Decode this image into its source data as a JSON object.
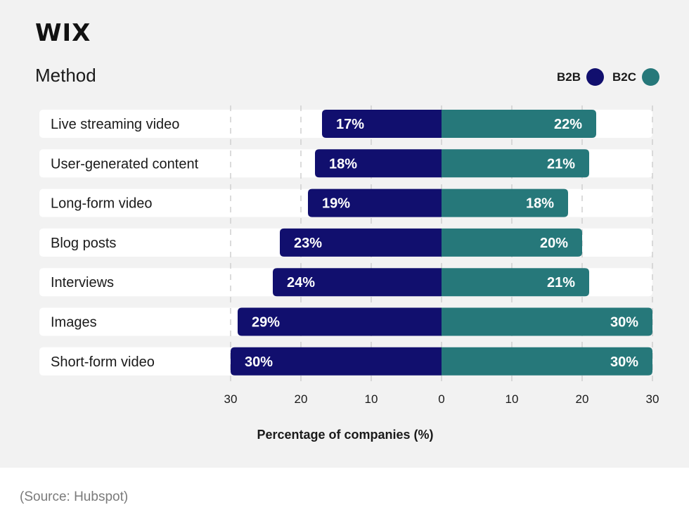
{
  "brand": {
    "logo_text": "WIX"
  },
  "colors": {
    "b2b": "#110f6e",
    "b2c": "#26787a",
    "row_bg": "#ffffff",
    "panel_bg": "#f2f2f2"
  },
  "chart_data": {
    "type": "bar",
    "orientation": "diverging-horizontal",
    "title": "Method",
    "xlabel": "Percentage of companies (%)",
    "categories": [
      "Live streaming video",
      "User-generated content",
      "Long-form video",
      "Blog posts",
      "Interviews",
      "Images",
      "Short-form video"
    ],
    "series": [
      {
        "name": "B2B",
        "direction": "left",
        "values": [
          17,
          18,
          19,
          23,
          24,
          29,
          30
        ],
        "labels": [
          "17%",
          "18%",
          "19%",
          "23%",
          "24%",
          "29%",
          "30%"
        ]
      },
      {
        "name": "B2C",
        "direction": "right",
        "values": [
          22,
          21,
          18,
          20,
          21,
          30,
          30
        ],
        "labels": [
          "22%",
          "21%",
          "18%",
          "20%",
          "21%",
          "30%",
          "30%"
        ]
      }
    ],
    "xlim": [
      -30,
      30
    ],
    "ticks": [
      -30,
      -20,
      -10,
      0,
      10,
      20,
      30
    ],
    "tick_labels": [
      "30",
      "20",
      "10",
      "0",
      "10",
      "20",
      "30"
    ],
    "legend": "top-right",
    "grid": true
  },
  "footer": {
    "source": "(Source: Hubspot)"
  }
}
